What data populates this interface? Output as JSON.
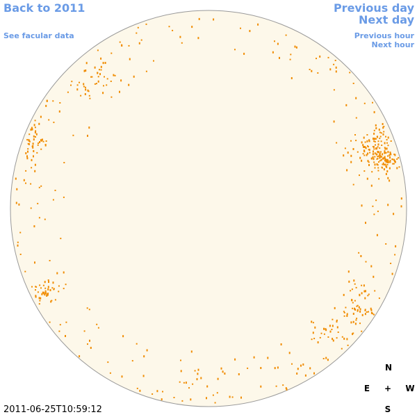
{
  "links": {
    "back": "Back to 2011",
    "facular": "See facular data",
    "previous_day": "Previous day",
    "next_day": "Next day",
    "previous_hour": "Previous hour",
    "next_hour": "Next hour"
  },
  "compass": {
    "north": "N",
    "east": "E",
    "center": "+",
    "west": "W",
    "south": "S"
  },
  "timestamp": "2011-06-25T10:59:12"
}
